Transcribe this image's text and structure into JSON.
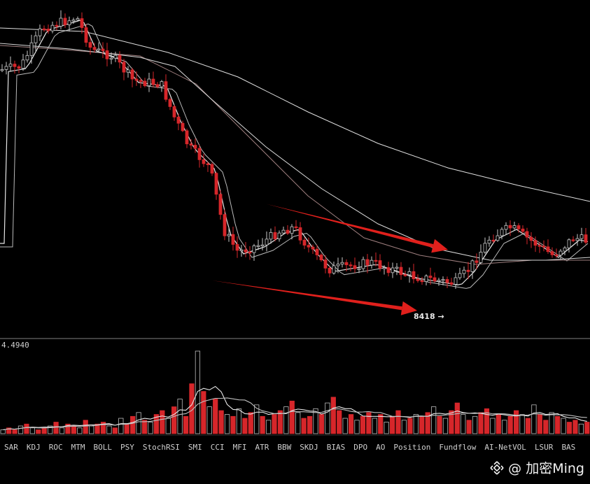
{
  "chart_data": {
    "type": "candlestick",
    "title": "",
    "price_panel": {
      "low_marker_label": "8418 →"
    },
    "volume_panel": {
      "label": "4.4940",
      "values": [
        2,
        3,
        2,
        4,
        5,
        3,
        2,
        3,
        4,
        6,
        3,
        5,
        4,
        3,
        7,
        4,
        5,
        6,
        4,
        3,
        8,
        5,
        9,
        11,
        7,
        6,
        10,
        12,
        8,
        14,
        18,
        9,
        26,
        43,
        22,
        14,
        18,
        12,
        10,
        9,
        13,
        8,
        11,
        15,
        9,
        7,
        10,
        12,
        14,
        17,
        11,
        8,
        9,
        13,
        10,
        16,
        19,
        12,
        8,
        10,
        7,
        9,
        11,
        8,
        10,
        6,
        9,
        12,
        7,
        8,
        10,
        9,
        11,
        14,
        9,
        8,
        12,
        16,
        10,
        7,
        9,
        11,
        13,
        8,
        10,
        7,
        9,
        12,
        10,
        8,
        15,
        10,
        7,
        11,
        9,
        8,
        6,
        7,
        5,
        6
      ]
    },
    "annotations": [
      {
        "type": "arrow",
        "color": "#e0201c",
        "description": "upper trendline arrow"
      },
      {
        "type": "arrow",
        "color": "#e0201c",
        "description": "lower trendline arrow"
      }
    ],
    "colors": {
      "up": "#c8c8c8",
      "down": "#d6262a",
      "background": "#000000"
    }
  },
  "indicators": [
    "SAR",
    "KDJ",
    "ROC",
    "MTM",
    "BOLL",
    "PSY",
    "StochRSI",
    "SMI",
    "CCI",
    "MFI",
    "ATR",
    "BBW",
    "SKDJ",
    "BIAS",
    "DPO",
    "AO",
    "Position",
    "Fundflow",
    "AI-NetVOL",
    "LSUR",
    "BAS"
  ],
  "watermark": {
    "text": "@ 加密Ming"
  }
}
